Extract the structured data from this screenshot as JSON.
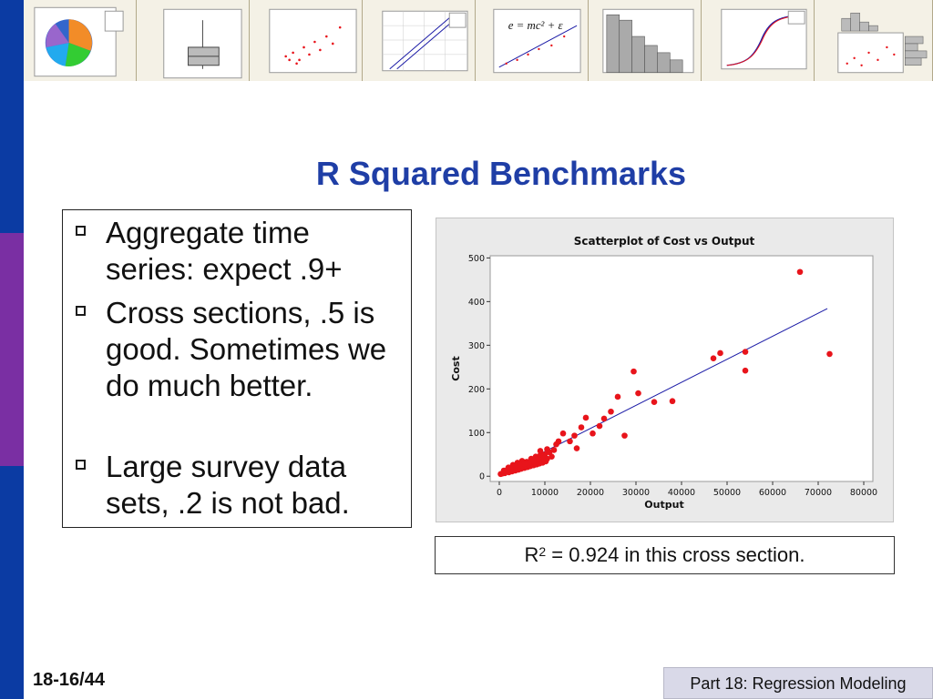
{
  "slide": {
    "title": "R Squared Benchmarks",
    "bullets": [
      "Aggregate time series: expect .9+",
      "Cross sections, .5 is good. Sometimes we do much better.",
      "Large survey data sets, .2 is not bad."
    ],
    "note_prefix": "R",
    "note_superscript": "2",
    "note_suffix": " = 0.924 in this cross section.",
    "slide_number": "18-16/44",
    "footer": "Part 18: Regression Modeling"
  },
  "thumbnails": [
    {
      "name": "pie-chart-thumbnail"
    },
    {
      "name": "boxplot-thumbnail"
    },
    {
      "name": "scatterplot-thumbnail"
    },
    {
      "name": "probability-plot-thumbnail"
    },
    {
      "name": "equation-scatter-thumbnail",
      "equation": "e = mc² + ε"
    },
    {
      "name": "histogram-thumbnail"
    },
    {
      "name": "empirical-cdf-thumbnail"
    },
    {
      "name": "marginal-plot-thumbnail"
    }
  ],
  "colors": {
    "title": "#1f3ea6",
    "points": "#e8141b",
    "fit_line": "#1a1aa6",
    "sidebar_blue": "#0b3ba3",
    "sidebar_purple": "#7a2fa3"
  },
  "chart_data": {
    "type": "scatter",
    "title": "Scatterplot of Cost vs Output",
    "xlabel": "Output",
    "ylabel": "Cost",
    "xlim": [
      -2000,
      82000
    ],
    "ylim": [
      -12,
      505
    ],
    "xticks": [
      0,
      10000,
      20000,
      30000,
      40000,
      50000,
      60000,
      70000,
      80000
    ],
    "yticks": [
      0,
      100,
      200,
      300,
      400,
      500
    ],
    "grid": false,
    "fit_line": {
      "x": [
        0,
        72000
      ],
      "y": [
        4,
        384
      ]
    },
    "points": [
      [
        300,
        5
      ],
      [
        600,
        6
      ],
      [
        900,
        8
      ],
      [
        1200,
        7
      ],
      [
        1500,
        10
      ],
      [
        1800,
        12
      ],
      [
        2100,
        9
      ],
      [
        2500,
        14
      ],
      [
        2800,
        11
      ],
      [
        3200,
        16
      ],
      [
        3500,
        13
      ],
      [
        3800,
        18
      ],
      [
        4200,
        15
      ],
      [
        4500,
        20
      ],
      [
        4800,
        17
      ],
      [
        5200,
        22
      ],
      [
        5500,
        19
      ],
      [
        5800,
        24
      ],
      [
        6200,
        21
      ],
      [
        6500,
        26
      ],
      [
        6800,
        23
      ],
      [
        7200,
        28
      ],
      [
        7500,
        25
      ],
      [
        7800,
        30
      ],
      [
        8200,
        27
      ],
      [
        8500,
        32
      ],
      [
        8800,
        29
      ],
      [
        9200,
        35
      ],
      [
        9500,
        31
      ],
      [
        9800,
        38
      ],
      [
        10200,
        34
      ],
      [
        10500,
        40
      ],
      [
        1000,
        13
      ],
      [
        2000,
        20
      ],
      [
        3000,
        26
      ],
      [
        4000,
        31
      ],
      [
        5000,
        35
      ],
      [
        6000,
        33
      ],
      [
        7000,
        40
      ],
      [
        8000,
        45
      ],
      [
        9000,
        48
      ],
      [
        10000,
        50
      ],
      [
        11000,
        55
      ],
      [
        12000,
        60
      ],
      [
        12500,
        73
      ],
      [
        11500,
        45
      ],
      [
        10500,
        62
      ],
      [
        9800,
        42
      ],
      [
        9000,
        58
      ],
      [
        8500,
        39
      ],
      [
        7500,
        36
      ],
      [
        6500,
        30
      ],
      [
        5500,
        28
      ],
      [
        4500,
        26
      ],
      [
        3500,
        24
      ],
      [
        2500,
        17
      ],
      [
        1800,
        15
      ],
      [
        13000,
        80
      ],
      [
        14000,
        98
      ],
      [
        15500,
        80
      ],
      [
        16500,
        93
      ],
      [
        17000,
        64
      ],
      [
        18000,
        112
      ],
      [
        19000,
        134
      ],
      [
        20500,
        98
      ],
      [
        22000,
        115
      ],
      [
        23000,
        132
      ],
      [
        24500,
        148
      ],
      [
        26000,
        182
      ],
      [
        27500,
        93
      ],
      [
        29500,
        240
      ],
      [
        30500,
        190
      ],
      [
        34000,
        170
      ],
      [
        38000,
        172
      ],
      [
        47000,
        270
      ],
      [
        48500,
        282
      ],
      [
        54000,
        285
      ],
      [
        54000,
        242
      ],
      [
        66000,
        468
      ],
      [
        72500,
        280
      ]
    ]
  }
}
